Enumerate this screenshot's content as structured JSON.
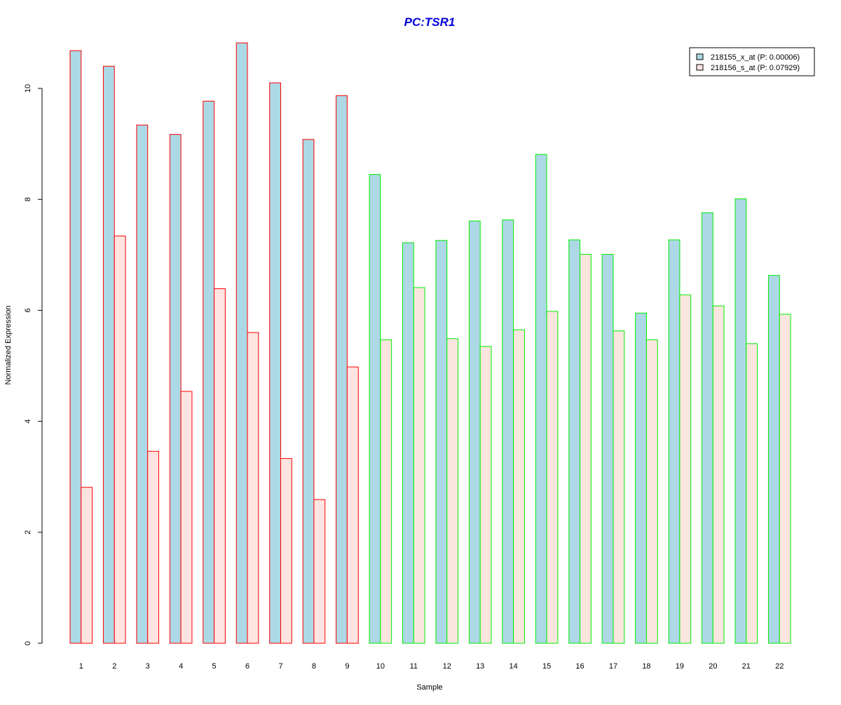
{
  "chart_data": {
    "type": "bar",
    "title": "PC:TSR1",
    "xlabel": "Sample",
    "ylabel": "Normalized Expression",
    "categories": [
      "1",
      "2",
      "3",
      "4",
      "5",
      "6",
      "7",
      "8",
      "9",
      "10",
      "11",
      "12",
      "13",
      "14",
      "15",
      "16",
      "17",
      "18",
      "19",
      "20",
      "21",
      "22"
    ],
    "ylim": [
      0,
      11
    ],
    "yticks": [
      "0",
      "2",
      "4",
      "6",
      "8",
      "10"
    ],
    "series": [
      {
        "name": "218155_x_at (P: 0.00006)",
        "fill": "#add8e6",
        "values": [
          10.68,
          10.4,
          9.34,
          9.17,
          9.77,
          10.82,
          10.1,
          9.08,
          9.87,
          8.45,
          7.22,
          7.26,
          7.61,
          7.63,
          8.81,
          7.27,
          7.01,
          5.95,
          7.27,
          7.76,
          8.01,
          6.63
        ]
      },
      {
        "name": "218156_s_at (P: 0.07929)",
        "fill_group1": "#ffe4e1",
        "fill_group2": "#fae6de",
        "values": [
          2.81,
          7.34,
          3.46,
          4.54,
          6.39,
          5.6,
          3.33,
          2.59,
          4.98,
          5.47,
          6.41,
          5.49,
          5.35,
          5.65,
          5.98,
          7.01,
          5.63,
          5.47,
          6.28,
          6.08,
          5.4,
          5.93
        ]
      }
    ],
    "group_border_colors": [
      "#ff0000",
      "#ff0000",
      "#ff0000",
      "#ff0000",
      "#ff0000",
      "#ff0000",
      "#ff0000",
      "#ff0000",
      "#ff0000",
      "#00ee00",
      "#00ee00",
      "#00ee00",
      "#00ee00",
      "#00ee00",
      "#00ee00",
      "#00ee00",
      "#00ee00",
      "#00ee00",
      "#00ee00",
      "#00ee00",
      "#00ee00",
      "#00ee00"
    ],
    "title_color": "#0000dd",
    "grid": false,
    "legend_position": "top-right"
  }
}
